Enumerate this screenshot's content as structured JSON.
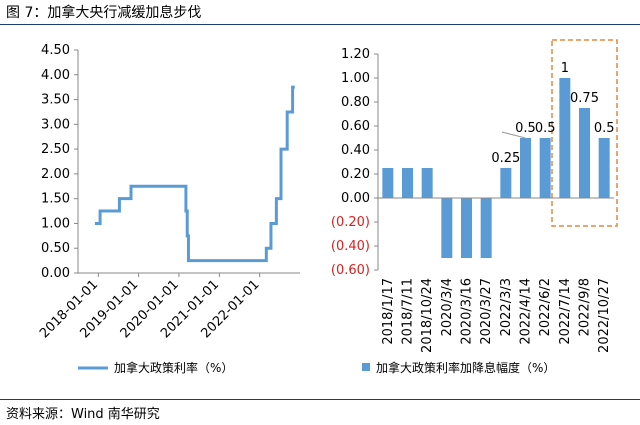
{
  "figure": {
    "title": "图 7：加拿大央行减缓加息步伐",
    "source": "资料来源：Wind 南华研究"
  },
  "chart_data": [
    {
      "type": "line",
      "series": [
        {
          "name": "加拿大政策利率（%）",
          "color": "#5b9bd5"
        }
      ],
      "x_ticks": [
        "2018-01-01",
        "2019-01-01",
        "2020-01-01",
        "2021-01-01",
        "2022-01-01"
      ],
      "ylim": [
        0,
        4.5
      ],
      "y_ticks": [
        "4.50",
        "4.00",
        "3.50",
        "3.00",
        "2.50",
        "2.00",
        "1.50",
        "1.00",
        "0.50",
        "0.00"
      ],
      "points": [
        {
          "x": "2017-12-01",
          "y": 1.0
        },
        {
          "x": "2018-01-17",
          "y": 1.25
        },
        {
          "x": "2018-07-11",
          "y": 1.5
        },
        {
          "x": "2018-10-24",
          "y": 1.75
        },
        {
          "x": "2019-12-31",
          "y": 1.75
        },
        {
          "x": "2020-03-04",
          "y": 1.25
        },
        {
          "x": "2020-03-16",
          "y": 0.75
        },
        {
          "x": "2020-03-27",
          "y": 0.25
        },
        {
          "x": "2022-03-02",
          "y": 0.5
        },
        {
          "x": "2022-04-13",
          "y": 1.0
        },
        {
          "x": "2022-06-01",
          "y": 1.5
        },
        {
          "x": "2022-07-13",
          "y": 2.5
        },
        {
          "x": "2022-09-07",
          "y": 3.25
        },
        {
          "x": "2022-10-26",
          "y": 3.75
        },
        {
          "x": "2022-11-15",
          "y": 3.75
        }
      ]
    },
    {
      "type": "bar",
      "series_name": "加拿大政策利率加降息幅度（%）",
      "color": "#5b9bd5",
      "categories": [
        "2018/1/17",
        "2018/7/11",
        "2018/10/24",
        "2020/3/4",
        "2020/3/16",
        "2020/3/27",
        "2022/3/3",
        "2022/4/14",
        "2022/6/2",
        "2022/7/14",
        "2022/9/8",
        "2022/10/27"
      ],
      "values": [
        0.25,
        0.25,
        0.25,
        -0.5,
        -0.5,
        -0.5,
        0.25,
        0.5,
        0.5,
        1.0,
        0.75,
        0.5
      ],
      "ylim": [
        -0.6,
        1.2
      ],
      "y_ticks": [
        "1.20",
        "1.00",
        "0.80",
        "0.60",
        "0.40",
        "0.20",
        "0.00",
        "(0.20)",
        "(0.40)",
        "(0.60)"
      ],
      "negative_tick_color": "#e02020",
      "data_labels": [
        "",
        "",
        "",
        "",
        "",
        "",
        "0.25",
        "0.5",
        "0.5",
        "1",
        "0.75",
        "0.5"
      ],
      "highlight": {
        "from_index": 9,
        "to_index": 11,
        "color": "#e8853a",
        "style": "dashed"
      }
    }
  ]
}
